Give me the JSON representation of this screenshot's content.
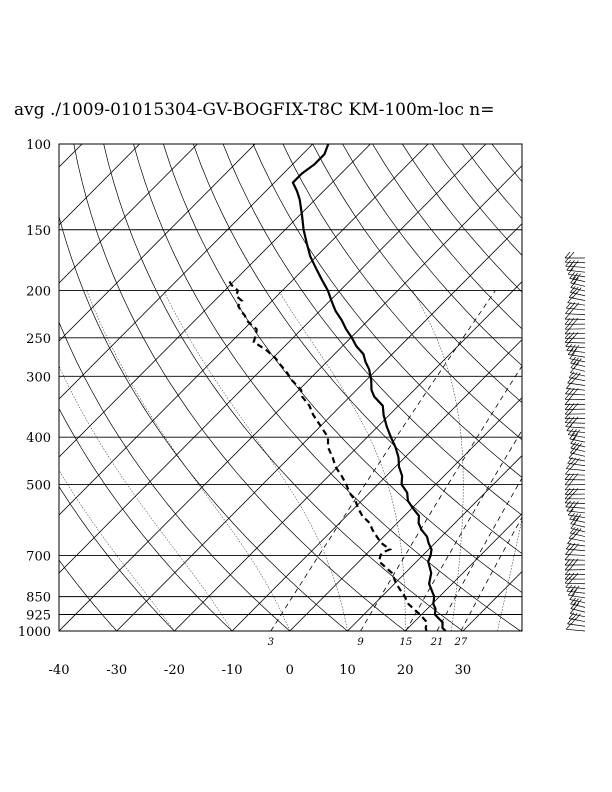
{
  "title": "avg ./1009-01015304-GV-BOGFIX-T8C KM-100m-loc n=",
  "chart_data": {
    "type": "line",
    "subtype": "skew-T log-p diagram",
    "x_axis": {
      "label": "",
      "ticks": [
        "-40",
        "-30",
        "-20",
        "-10",
        "0",
        "10",
        "20",
        "30"
      ],
      "tick_values": [
        -40,
        -30,
        -20,
        -10,
        0,
        10,
        20,
        30
      ],
      "range": [
        -40,
        40
      ],
      "reference_level_hPa": 1000
    },
    "y_axis": {
      "label": "",
      "scale": "log",
      "inverted": true,
      "ticks": [
        "100",
        "150",
        "200",
        "250",
        "300",
        "400",
        "500",
        "700",
        "850",
        "925",
        "1000"
      ],
      "tick_values": [
        100,
        150,
        200,
        250,
        300,
        400,
        500,
        700,
        850,
        925,
        1000
      ],
      "range": [
        1000,
        100
      ]
    },
    "mixing_ratio_labels": [
      "3",
      "9",
      "15",
      "21",
      "27"
    ],
    "mixing_ratio_values_g_per_kg": [
      3,
      9,
      15,
      21,
      27
    ],
    "grid": true,
    "series": [
      {
        "style": "solid",
        "color": "#000000",
        "pressure_hPa": [
          1000,
          985,
          960,
          925,
          900,
          880,
          850,
          800,
          760,
          720,
          700,
          680,
          660,
          640,
          620,
          600,
          580,
          560,
          540,
          520,
          500,
          480,
          460,
          440,
          420,
          400,
          380,
          360,
          345,
          330,
          320,
          305,
          290,
          280,
          270,
          260,
          250,
          240,
          230,
          220,
          210,
          200,
          190,
          180,
          170,
          160,
          150,
          140,
          130,
          125,
          120,
          115,
          110,
          105,
          100
        ],
        "temperature_C": [
          27.0,
          25.9,
          25.0,
          22.3,
          21.4,
          20.2,
          19.1,
          16.0,
          14.5,
          12.0,
          11.4,
          10.5,
          8.9,
          7.5,
          5.4,
          3.7,
          2.5,
          0.2,
          -2.0,
          -3.5,
          -5.9,
          -7.3,
          -9.4,
          -11.1,
          -13.3,
          -15.9,
          -18.5,
          -21.0,
          -22.7,
          -25.8,
          -27.4,
          -29.2,
          -31.4,
          -33.3,
          -35.0,
          -37.6,
          -39.8,
          -42.3,
          -44.6,
          -47.3,
          -49.7,
          -52.1,
          -55.0,
          -58.0,
          -61.1,
          -63.9,
          -66.8,
          -69.6,
          -72.7,
          -74.6,
          -76.8,
          -76.8,
          -76.2,
          -76.2,
          -77.3
        ]
      },
      {
        "style": "dashed",
        "color": "#000000",
        "pressure_hPa": [
          1000,
          985,
          960,
          925,
          900,
          880,
          850,
          800,
          760,
          720,
          700,
          690,
          680,
          660,
          640,
          620,
          600,
          580,
          560,
          540,
          520,
          500,
          480,
          460,
          440,
          420,
          400,
          380,
          360,
          345,
          330,
          320,
          305,
          295,
          285,
          275,
          265,
          255,
          245,
          240,
          235,
          230,
          225,
          220,
          215,
          210,
          205,
          200,
          195,
          190
        ],
        "dewpoint_C": [
          23.7,
          23.0,
          22.3,
          19.7,
          17.6,
          15.9,
          14.0,
          10.3,
          7.7,
          3.5,
          2.7,
          2.5,
          3.3,
          0.7,
          -1.2,
          -3.1,
          -4.8,
          -7.3,
          -9.3,
          -11.1,
          -13.5,
          -15.5,
          -17.8,
          -20.4,
          -22.5,
          -25.0,
          -26.8,
          -29.9,
          -33.2,
          -35.4,
          -38.3,
          -39.6,
          -43.0,
          -45.0,
          -47.3,
          -49.6,
          -52.5,
          -56.1,
          -57.1,
          -57.8,
          -59.5,
          -61.1,
          -62.2,
          -63.7,
          -65.0,
          -65.2,
          -67.1,
          -67.7,
          -69.7,
          -71.2
        ]
      }
    ],
    "wind_barbs": {
      "present": true,
      "levels": 80
    }
  }
}
